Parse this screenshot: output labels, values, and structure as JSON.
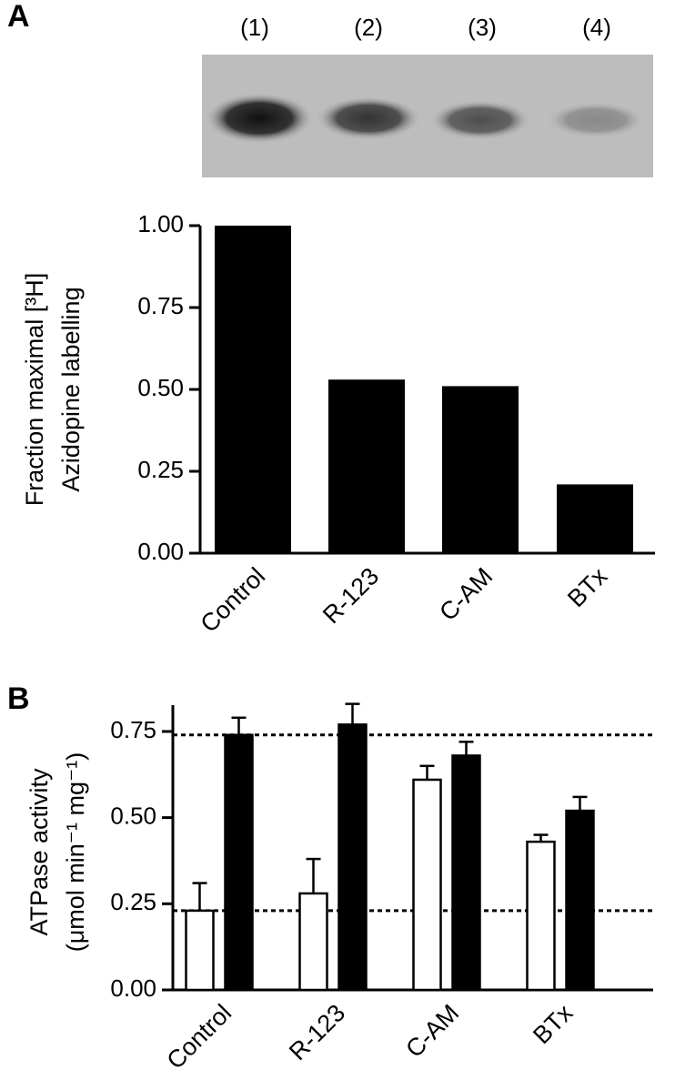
{
  "chart_data": [
    {
      "type": "bar",
      "panel": "A",
      "lane_labels": [
        "(1)",
        "(2)",
        "(3)",
        "(4)"
      ],
      "y_label": [
        "Fraction maximal [³H]",
        "Azidopine labelling"
      ],
      "categories": [
        "Control",
        "R-123",
        "C-AM",
        "BTx"
      ],
      "values": [
        1.0,
        0.53,
        0.51,
        0.21
      ],
      "color": "#000000",
      "ylim": [
        0,
        1.0
      ],
      "yticks": [
        {
          "value": 0,
          "label": "0.00"
        },
        {
          "value": 0.25,
          "label": "0.25"
        },
        {
          "value": 0.5,
          "label": "0.50"
        },
        {
          "value": 0.75,
          "label": "0.75"
        },
        {
          "value": 1.0,
          "label": "1.00"
        }
      ]
    },
    {
      "type": "grouped-bar",
      "panel": "B",
      "y_label": [
        "ATPase activity",
        "(μmol min⁻¹ mg⁻¹)"
      ],
      "categories": [
        "Control",
        "R-123",
        "C-AM",
        "BTx"
      ],
      "series": [
        {
          "color": "#ffffff",
          "values": [
            0.23,
            0.28,
            0.61,
            0.43
          ],
          "errors": [
            0.08,
            0.1,
            0.04,
            0.02
          ]
        },
        {
          "color": "#000000",
          "values": [
            0.74,
            0.77,
            0.68,
            0.52
          ],
          "errors": [
            0.05,
            0.06,
            0.04,
            0.04
          ]
        }
      ],
      "reference_lines": [
        0.74,
        0.23
      ],
      "ylim": [
        0,
        0.8
      ],
      "yticks": [
        {
          "value": 0,
          "label": "0.00"
        },
        {
          "value": 0.25,
          "label": "0.25"
        },
        {
          "value": 0.5,
          "label": "0.50"
        },
        {
          "value": 0.75,
          "label": "0.75"
        }
      ]
    }
  ]
}
